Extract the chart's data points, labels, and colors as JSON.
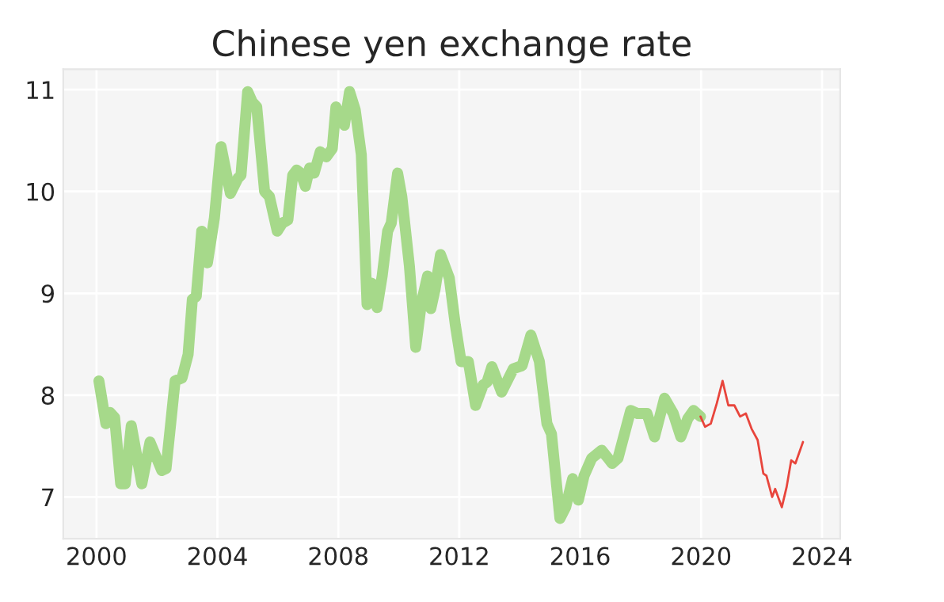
{
  "chart_data": {
    "type": "line",
    "title": "Chinese yen exchange rate",
    "series": [
      {
        "color": "#a6d98a",
        "x": [
          2000.08,
          2000.31,
          2000.45,
          2000.6,
          2000.8,
          2000.95,
          2001.15,
          2001.5,
          2001.77,
          2002.16,
          2002.3,
          2002.6,
          2002.83,
          2003.03,
          2003.17,
          2003.3,
          2003.48,
          2003.67,
          2003.9,
          2004.12,
          2004.43,
          2004.68,
          2004.78,
          2005.0,
          2005.15,
          2005.3,
          2005.56,
          2005.72,
          2005.98,
          2006.15,
          2006.33,
          2006.49,
          2006.62,
          2006.76,
          2006.91,
          2007.05,
          2007.2,
          2007.4,
          2007.6,
          2007.8,
          2007.92,
          2008.2,
          2008.37,
          2008.56,
          2008.76,
          2008.95,
          2009.1,
          2009.28,
          2009.45,
          2009.63,
          2009.75,
          2009.96,
          2010.1,
          2010.35,
          2010.56,
          2010.75,
          2010.95,
          2011.06,
          2011.2,
          2011.38,
          2011.67,
          2011.87,
          2012.06,
          2012.3,
          2012.54,
          2012.79,
          2012.92,
          2013.08,
          2013.4,
          2013.79,
          2014.08,
          2014.37,
          2014.65,
          2014.9,
          2015.05,
          2015.33,
          2015.52,
          2015.75,
          2015.94,
          2016.13,
          2016.38,
          2016.71,
          2017.06,
          2017.25,
          2017.67,
          2017.9,
          2018.21,
          2018.46,
          2018.79,
          2019.08,
          2019.33,
          2019.56,
          2019.75,
          2019.98
        ],
        "values": [
          8.14,
          7.72,
          7.83,
          7.78,
          7.13,
          7.13,
          7.7,
          7.13,
          7.54,
          7.26,
          7.28,
          8.14,
          8.17,
          8.4,
          8.94,
          8.97,
          9.61,
          9.3,
          9.74,
          10.44,
          9.98,
          10.13,
          10.16,
          10.98,
          10.88,
          10.83,
          10.0,
          9.95,
          9.61,
          9.69,
          9.72,
          10.16,
          10.21,
          10.18,
          10.05,
          10.23,
          10.18,
          10.39,
          10.34,
          10.42,
          10.83,
          10.65,
          10.98,
          10.8,
          10.36,
          8.89,
          9.1,
          8.86,
          9.17,
          9.61,
          9.69,
          10.18,
          9.95,
          9.27,
          8.47,
          8.91,
          9.17,
          8.85,
          9.04,
          9.38,
          9.15,
          8.69,
          8.33,
          8.33,
          7.9,
          8.1,
          8.13,
          8.28,
          8.03,
          8.26,
          8.29,
          8.59,
          8.33,
          7.72,
          7.62,
          6.79,
          6.9,
          7.18,
          6.97,
          7.21,
          7.38,
          7.46,
          7.33,
          7.38,
          7.85,
          7.82,
          7.82,
          7.59,
          7.97,
          7.82,
          7.59,
          7.77,
          7.85,
          7.79
        ]
      },
      {
        "color": "#e8453c",
        "x": [
          2019.98,
          2020.13,
          2020.32,
          2020.52,
          2020.71,
          2020.9,
          2021.1,
          2021.29,
          2021.48,
          2021.67,
          2021.87,
          2022.06,
          2022.16,
          2022.35,
          2022.45,
          2022.67,
          2022.83,
          2022.98,
          2023.12,
          2023.37
        ],
        "values": [
          7.79,
          7.69,
          7.72,
          7.92,
          8.14,
          7.9,
          7.9,
          7.79,
          7.82,
          7.67,
          7.56,
          7.23,
          7.21,
          7.0,
          7.08,
          6.9,
          7.1,
          7.36,
          7.33,
          7.54
        ]
      }
    ],
    "xlim": [
      1998.9,
      2024.6
    ],
    "ylim": [
      6.59,
      11.2
    ],
    "xticks": [
      2000,
      2004,
      2008,
      2012,
      2016,
      2020,
      2024
    ],
    "yticks": [
      7,
      8,
      9,
      10,
      11
    ],
    "grid": true
  }
}
